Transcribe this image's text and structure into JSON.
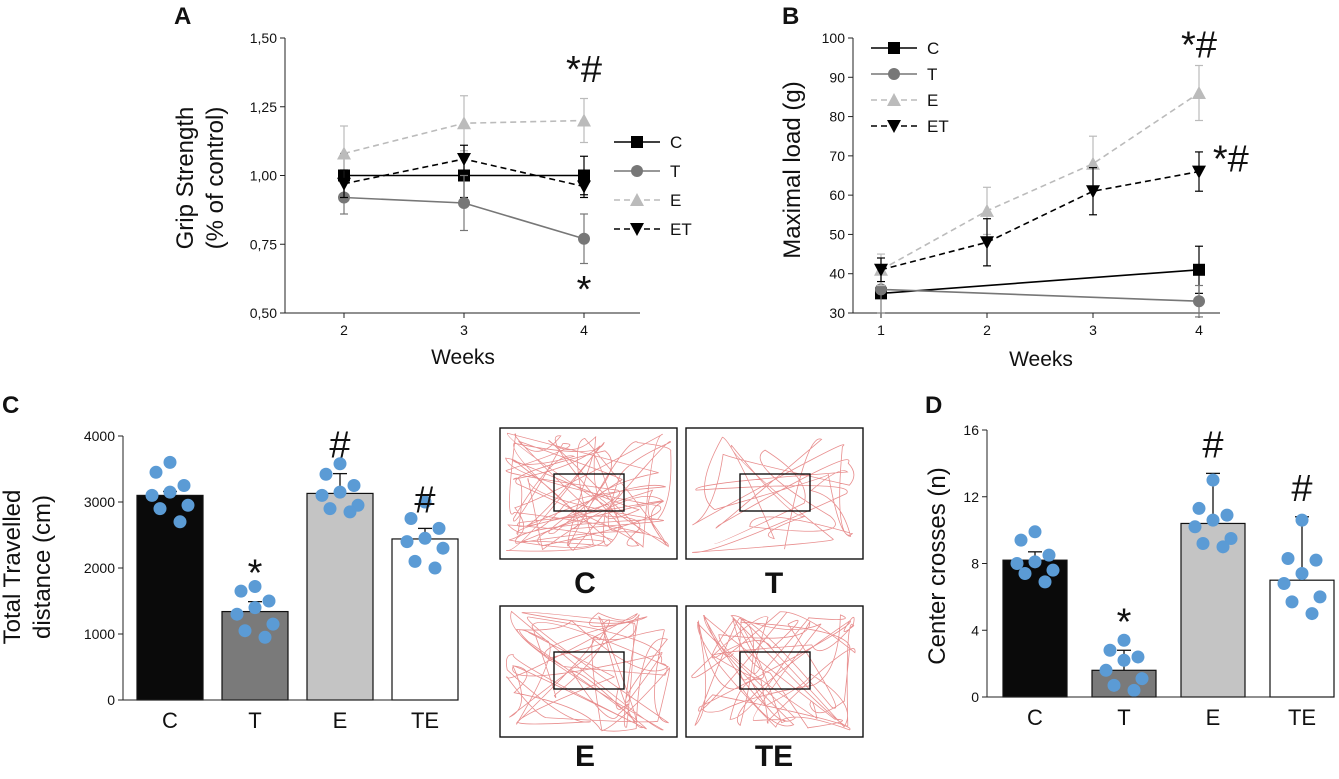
{
  "chart_data": [
    {
      "panel": "A",
      "type": "line",
      "xlabel": "Weeks",
      "ylabel_line1": "Grip Strength",
      "ylabel_line2": "(% of control)",
      "x": [
        2,
        3,
        4
      ],
      "xticks": [
        "2",
        "3",
        "4"
      ],
      "ylim": [
        0.5,
        1.5
      ],
      "yticks": [
        "0,50",
        "0,75",
        "1,00",
        "1,25",
        "1,50"
      ],
      "series": [
        {
          "name": "C",
          "marker": "square",
          "color": "#000000",
          "dash": false,
          "values": [
            1.0,
            1.0,
            1.0
          ],
          "err": [
            0.08,
            0.08,
            0.07
          ]
        },
        {
          "name": "T",
          "marker": "circle",
          "color": "#777777",
          "dash": false,
          "values": [
            0.92,
            0.9,
            0.77
          ],
          "err": [
            0.06,
            0.1,
            0.09
          ]
        },
        {
          "name": "E",
          "marker": "triangle-up",
          "color": "#bbbbbb",
          "dash": true,
          "values": [
            1.08,
            1.19,
            1.2
          ],
          "err": [
            0.1,
            0.1,
            0.08
          ]
        },
        {
          "name": "ET",
          "marker": "triangle-down",
          "color": "#000000",
          "dash": true,
          "values": [
            0.97,
            1.06,
            0.96
          ],
          "err": [
            0.05,
            0.05,
            0.04
          ]
        }
      ],
      "annotations": [
        {
          "text": "*#",
          "x": 4,
          "y": 1.34
        },
        {
          "text": "*",
          "x": 4,
          "y": 0.54
        }
      ]
    },
    {
      "panel": "B",
      "type": "line",
      "xlabel": "Weeks",
      "ylabel": "Maximal load (g)",
      "x": [
        1,
        2,
        3,
        4
      ],
      "xticks": [
        "1",
        "2",
        "3",
        "4"
      ],
      "ylim": [
        30,
        100
      ],
      "yticks": [
        "30",
        "40",
        "50",
        "60",
        "70",
        "80",
        "90",
        "100"
      ],
      "series": [
        {
          "name": "C",
          "marker": "square",
          "color": "#000000",
          "dash": false,
          "x": [
            1,
            4
          ],
          "values": [
            35,
            41
          ],
          "err": [
            0,
            6
          ]
        },
        {
          "name": "T",
          "marker": "circle",
          "color": "#777777",
          "dash": false,
          "x": [
            1,
            4
          ],
          "values": [
            36,
            33
          ],
          "err": [
            6,
            4
          ]
        },
        {
          "name": "E",
          "marker": "triangle-up",
          "color": "#bbbbbb",
          "dash": true,
          "x": [
            1,
            2,
            3,
            4
          ],
          "values": [
            41,
            56,
            68,
            86
          ],
          "err": [
            4,
            6,
            7,
            7
          ]
        },
        {
          "name": "ET",
          "marker": "triangle-down",
          "color": "#000000",
          "dash": true,
          "x": [
            1,
            2,
            3,
            4
          ],
          "values": [
            41,
            48,
            61,
            66
          ],
          "err": [
            3,
            6,
            6,
            5
          ]
        }
      ],
      "annotations": [
        {
          "text": "*#",
          "x": 4,
          "y": 95
        },
        {
          "text": "*#",
          "x": 4.3,
          "y": 66
        }
      ]
    },
    {
      "panel": "C",
      "type": "bar",
      "ylabel_line1": "Total Travelled",
      "ylabel_line2": "distance (cm)",
      "categories": [
        "C",
        "T",
        "E",
        "TE"
      ],
      "values": [
        3100,
        1340,
        3130,
        2440
      ],
      "err": [
        60,
        150,
        300,
        160
      ],
      "bar_colors": [
        "#0a0a0a",
        "#7a7a7a",
        "#c4c4c4",
        "#ffffff"
      ],
      "points": [
        [
          3600,
          3450,
          3250,
          3150,
          3100,
          2950,
          2900,
          2700
        ],
        [
          1720,
          1650,
          1500,
          1400,
          1300,
          1150,
          1050,
          950
        ],
        [
          3580,
          3420,
          3250,
          3150,
          3100,
          2950,
          2900,
          2850
        ],
        [
          3000,
          2750,
          2600,
          2450,
          2400,
          2300,
          2100,
          2000
        ]
      ],
      "ylim": [
        0,
        4000
      ],
      "yticks": [
        "0",
        "1000",
        "2000",
        "3000",
        "4000"
      ],
      "significance": [
        "",
        "*",
        "#",
        "#"
      ],
      "point_color": "#5b9bd5"
    },
    {
      "panel": "D",
      "type": "bar",
      "ylabel": "Center crosses (n)",
      "categories": [
        "C",
        "T",
        "E",
        "TE"
      ],
      "values": [
        8.2,
        1.6,
        10.4,
        7.0
      ],
      "err": [
        0.5,
        1.2,
        3.0,
        3.8
      ],
      "bar_colors": [
        "#0a0a0a",
        "#7a7a7a",
        "#c4c4c4",
        "#ffffff"
      ],
      "points": [
        [
          9.9,
          9.4,
          8.5,
          8.1,
          8.0,
          7.6,
          7.4,
          6.9
        ],
        [
          3.4,
          2.8,
          2.4,
          2.2,
          1.6,
          1.1,
          0.7,
          0.4
        ],
        [
          13.0,
          11.3,
          10.9,
          10.6,
          10.2,
          9.5,
          9.2,
          9.0
        ],
        [
          10.6,
          8.3,
          8.2,
          7.4,
          6.8,
          6.0,
          5.7,
          5.0
        ]
      ],
      "ylim": [
        0,
        16
      ],
      "yticks": [
        "0",
        "4",
        "8",
        "12",
        "16"
      ],
      "significance": [
        "",
        "*",
        "#",
        "#"
      ],
      "point_color": "#5b9bd5"
    }
  ],
  "panel_letters": [
    "A",
    "B",
    "C",
    "D"
  ],
  "tracking_labels": [
    "C",
    "T",
    "E",
    "TE"
  ],
  "track_color": "#e88e8e"
}
